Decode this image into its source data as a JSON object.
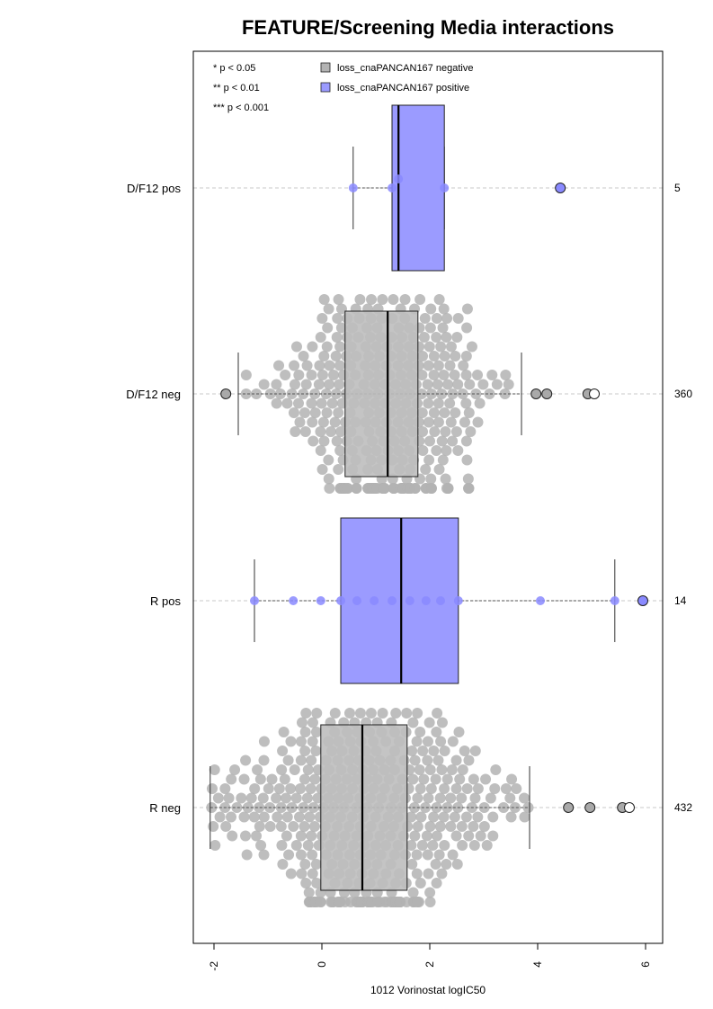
{
  "chart_data": {
    "type": "box",
    "title": "FEATURE/Screening Media interactions",
    "xlabel": "1012 Vorinostat logIC50",
    "xlim": [
      -2.2,
      6.3
    ],
    "x_ticks": [
      -2,
      0,
      2,
      4,
      6
    ],
    "x_tick_labels": [
      "-2",
      "0",
      "2",
      "4",
      "6"
    ],
    "grid": "horizontal dashed lines at each group",
    "legend_location": "top",
    "significance_legend": [
      "* p < 0.05",
      "** p < 0.01",
      "*** p < 0.001"
    ],
    "legend": [
      {
        "label": "loss_cnaPANCAN167 negative",
        "color": "#b3b3b3"
      },
      {
        "label": "loss_cnaPANCAN167 positive",
        "color": "#9b9bff"
      }
    ],
    "groups": [
      {
        "label": "D/F12 pos",
        "n": "5",
        "status": "positive",
        "box": {
          "whisker_low": 0.58,
          "q1": 1.3,
          "median": 1.42,
          "q3": 2.27,
          "whisker_high": 2.27
        },
        "points": [
          0.58,
          1.3,
          1.42,
          2.27
        ],
        "outliers": [
          4.42
        ]
      },
      {
        "label": "D/F12 neg",
        "n": "360",
        "status": "negative",
        "box": {
          "whisker_low": -1.55,
          "q1": 0.43,
          "median": 1.22,
          "q3": 1.78,
          "whisker_high": 3.7
        },
        "outliers": [
          -1.78,
          3.97,
          4.17,
          4.93,
          5.05
        ]
      },
      {
        "label": "R pos",
        "n": "14",
        "status": "positive",
        "box": {
          "whisker_low": -1.25,
          "q1": 0.35,
          "median": 1.47,
          "q3": 2.53,
          "whisker_high": 5.43
        },
        "points": [
          -1.25,
          -0.53,
          -0.02,
          0.35,
          0.65,
          0.97,
          1.3,
          1.63,
          1.93,
          2.2,
          2.53,
          4.05,
          5.43
        ],
        "outliers": [
          5.95
        ]
      },
      {
        "label": "R neg",
        "n": "432",
        "status": "negative",
        "box": {
          "whisker_low": -2.07,
          "q1": -0.02,
          "median": 0.75,
          "q3": 1.58,
          "whisker_high": 3.85
        },
        "outliers": [
          4.57,
          4.97,
          5.57,
          5.7
        ]
      }
    ]
  },
  "colors": {
    "negative_point": "#b3b3b3",
    "negative_box": "#bebebe",
    "positive_point": "#8a8aff",
    "positive_box": "#9b9bff",
    "grid": "#c8c8c8"
  }
}
